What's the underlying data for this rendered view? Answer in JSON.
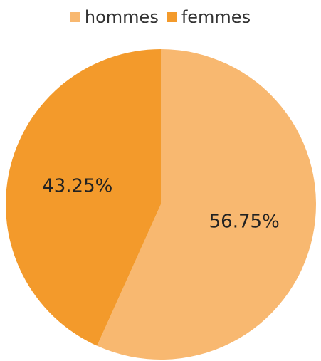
{
  "chart_data": {
    "type": "pie",
    "title": "",
    "legend": "top-center",
    "slices": [
      {
        "name": "hommes",
        "value": 56.75,
        "label": "56.75%",
        "color": "#F8B870"
      },
      {
        "name": "femmes",
        "value": 43.25,
        "label": "43.25%",
        "color": "#F39A2B"
      }
    ]
  }
}
